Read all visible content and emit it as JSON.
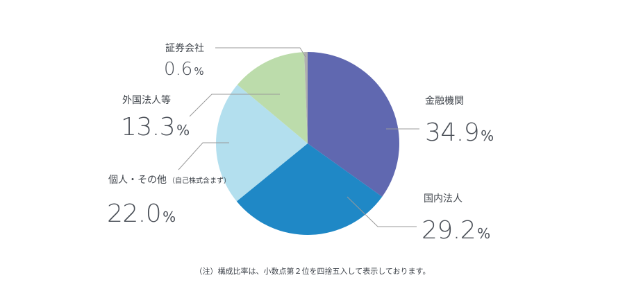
{
  "chart_data": {
    "type": "pie",
    "title": "",
    "start": "top",
    "direction": "clockwise",
    "slices": [
      {
        "label": "金融機関",
        "sublabel": "",
        "value": 34.9,
        "value_text": "34.9",
        "unit": "%",
        "color": "#6068b0"
      },
      {
        "label": "国内法人",
        "sublabel": "",
        "value": 29.2,
        "value_text": "29.2",
        "unit": "%",
        "color": "#1f88c6"
      },
      {
        "label": "個人・その他",
        "sublabel": "（自己株式含まず）",
        "value": 22.0,
        "value_text": "22.0",
        "unit": "%",
        "color": "#b3dfee"
      },
      {
        "label": "外国法人等",
        "sublabel": "",
        "value": 13.3,
        "value_text": "13.3",
        "unit": "%",
        "color": "#bcdcab"
      },
      {
        "label": "証券会社",
        "sublabel": "",
        "value": 0.6,
        "value_text": "0.6",
        "unit": "%",
        "color": "#b0b0b0"
      }
    ],
    "note": "（注）構成比率は、小数点第２位を四捨五入して表示しております。"
  }
}
